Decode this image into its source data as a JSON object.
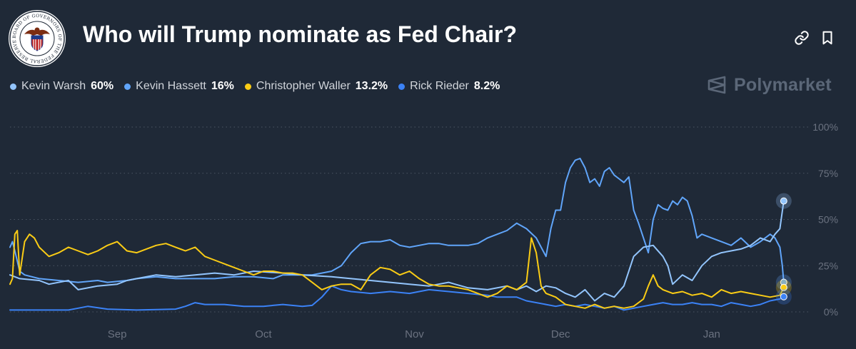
{
  "header": {
    "title": "Who will Trump nominate as Fed Chair?",
    "seal_text": "BOARD OF GOVERNORS OF THE FEDERAL RESERVE SYSTEM",
    "link_icon": "link-icon",
    "bookmark_icon": "bookmark-icon"
  },
  "brand": {
    "name": "Polymarket",
    "icon": "polymarket-logo-icon"
  },
  "colors": {
    "background": "#1f2937",
    "grid": "#4b5563",
    "axis_text": "#6b7280"
  },
  "chart_data": {
    "type": "line",
    "title": "Who will Trump nominate as Fed Chair?",
    "x_unit": "day index from Aug 10",
    "x_ticks": [
      {
        "label": "Sep",
        "x": 22
      },
      {
        "label": "Oct",
        "x": 52
      },
      {
        "label": "Nov",
        "x": 83
      },
      {
        "label": "Dec",
        "x": 113
      },
      {
        "label": "Jan",
        "x": 144
      }
    ],
    "y_ticks": [
      {
        "label": "100%",
        "value": 100
      },
      {
        "label": "75%",
        "value": 75
      },
      {
        "label": "50%",
        "value": 50
      },
      {
        "label": "25%",
        "value": 25
      },
      {
        "label": "0%",
        "value": 0
      }
    ],
    "xlim": [
      0,
      160
    ],
    "ylim": [
      0,
      100
    ],
    "grid": true,
    "series": [
      {
        "name": "Kevin Warsh",
        "current": "60%",
        "color": "#93c5fd",
        "points": [
          [
            0,
            20
          ],
          [
            2,
            18
          ],
          [
            6,
            17
          ],
          [
            8,
            15
          ],
          [
            12,
            17
          ],
          [
            14,
            12
          ],
          [
            18,
            14
          ],
          [
            22,
            15
          ],
          [
            24,
            17
          ],
          [
            26,
            18
          ],
          [
            30,
            20
          ],
          [
            34,
            19
          ],
          [
            38,
            20
          ],
          [
            42,
            21
          ],
          [
            46,
            20
          ],
          [
            50,
            22
          ],
          [
            56,
            21
          ],
          [
            60,
            20
          ],
          [
            66,
            19
          ],
          [
            70,
            18
          ],
          [
            74,
            17
          ],
          [
            78,
            16
          ],
          [
            82,
            15
          ],
          [
            86,
            14
          ],
          [
            90,
            16
          ],
          [
            94,
            13
          ],
          [
            98,
            12
          ],
          [
            102,
            14
          ],
          [
            104,
            12
          ],
          [
            106,
            14
          ],
          [
            108,
            11
          ],
          [
            110,
            14
          ],
          [
            112,
            13
          ],
          [
            114,
            10
          ],
          [
            116,
            8
          ],
          [
            118,
            12
          ],
          [
            120,
            6
          ],
          [
            122,
            10
          ],
          [
            124,
            8
          ],
          [
            126,
            14
          ],
          [
            128,
            30
          ],
          [
            130,
            35
          ],
          [
            132,
            36
          ],
          [
            134,
            30
          ],
          [
            135,
            25
          ],
          [
            136,
            15
          ],
          [
            138,
            20
          ],
          [
            140,
            17
          ],
          [
            142,
            25
          ],
          [
            144,
            30
          ],
          [
            146,
            32
          ],
          [
            148,
            33
          ],
          [
            150,
            34
          ],
          [
            152,
            36
          ],
          [
            154,
            40
          ],
          [
            156,
            38
          ],
          [
            157,
            42
          ],
          [
            158,
            45
          ],
          [
            158.8,
            60
          ]
        ]
      },
      {
        "name": "Kevin Hassett",
        "current": "16%",
        "color": "#60a5fa",
        "points": [
          [
            0,
            35
          ],
          [
            0.5,
            38
          ],
          [
            1,
            33
          ],
          [
            2,
            22
          ],
          [
            3,
            20
          ],
          [
            6,
            18
          ],
          [
            10,
            17
          ],
          [
            14,
            16
          ],
          [
            18,
            17
          ],
          [
            20,
            16
          ],
          [
            24,
            17
          ],
          [
            26,
            18
          ],
          [
            30,
            19
          ],
          [
            34,
            18
          ],
          [
            38,
            18
          ],
          [
            42,
            18
          ],
          [
            46,
            19
          ],
          [
            50,
            19
          ],
          [
            54,
            18
          ],
          [
            56,
            20
          ],
          [
            60,
            20
          ],
          [
            62,
            20
          ],
          [
            64,
            21
          ],
          [
            66,
            22
          ],
          [
            68,
            25
          ],
          [
            70,
            32
          ],
          [
            72,
            37
          ],
          [
            74,
            38
          ],
          [
            76,
            38
          ],
          [
            78,
            39
          ],
          [
            80,
            36
          ],
          [
            82,
            35
          ],
          [
            84,
            36
          ],
          [
            86,
            37
          ],
          [
            88,
            37
          ],
          [
            90,
            36
          ],
          [
            92,
            36
          ],
          [
            94,
            36
          ],
          [
            96,
            37
          ],
          [
            98,
            40
          ],
          [
            100,
            42
          ],
          [
            102,
            44
          ],
          [
            104,
            48
          ],
          [
            106,
            45
          ],
          [
            108,
            40
          ],
          [
            110,
            30
          ],
          [
            111,
            45
          ],
          [
            112,
            55
          ],
          [
            113,
            55
          ],
          [
            114,
            70
          ],
          [
            115,
            78
          ],
          [
            116,
            82
          ],
          [
            117,
            83
          ],
          [
            118,
            78
          ],
          [
            119,
            70
          ],
          [
            120,
            72
          ],
          [
            121,
            68
          ],
          [
            122,
            76
          ],
          [
            123,
            78
          ],
          [
            124,
            74
          ],
          [
            125,
            72
          ],
          [
            126,
            70
          ],
          [
            127,
            73
          ],
          [
            128,
            55
          ],
          [
            129,
            48
          ],
          [
            130,
            40
          ],
          [
            131,
            32
          ],
          [
            132,
            50
          ],
          [
            133,
            58
          ],
          [
            134,
            56
          ],
          [
            135,
            55
          ],
          [
            136,
            60
          ],
          [
            137,
            58
          ],
          [
            138,
            62
          ],
          [
            139,
            60
          ],
          [
            140,
            52
          ],
          [
            141,
            40
          ],
          [
            142,
            42
          ],
          [
            144,
            40
          ],
          [
            146,
            38
          ],
          [
            148,
            36
          ],
          [
            150,
            40
          ],
          [
            152,
            35
          ],
          [
            154,
            38
          ],
          [
            156,
            42
          ],
          [
            157,
            40
          ],
          [
            158,
            35
          ],
          [
            158.5,
            25
          ],
          [
            158.8,
            16
          ]
        ]
      },
      {
        "name": "Christopher Waller",
        "current": "13.2%",
        "color": "#facc15",
        "points": [
          [
            0,
            15
          ],
          [
            0.5,
            18
          ],
          [
            1,
            42
          ],
          [
            1.5,
            44
          ],
          [
            2,
            20
          ],
          [
            3,
            38
          ],
          [
            4,
            42
          ],
          [
            5,
            40
          ],
          [
            6,
            35
          ],
          [
            8,
            30
          ],
          [
            10,
            32
          ],
          [
            12,
            35
          ],
          [
            14,
            33
          ],
          [
            16,
            31
          ],
          [
            18,
            33
          ],
          [
            20,
            36
          ],
          [
            22,
            38
          ],
          [
            24,
            33
          ],
          [
            26,
            32
          ],
          [
            28,
            34
          ],
          [
            30,
            36
          ],
          [
            32,
            37
          ],
          [
            34,
            35
          ],
          [
            36,
            33
          ],
          [
            38,
            35
          ],
          [
            40,
            30
          ],
          [
            42,
            28
          ],
          [
            44,
            26
          ],
          [
            46,
            24
          ],
          [
            48,
            22
          ],
          [
            50,
            20
          ],
          [
            52,
            22
          ],
          [
            54,
            22
          ],
          [
            56,
            21
          ],
          [
            58,
            21
          ],
          [
            60,
            20
          ],
          [
            62,
            16
          ],
          [
            64,
            12
          ],
          [
            66,
            14
          ],
          [
            68,
            15
          ],
          [
            70,
            15
          ],
          [
            72,
            12
          ],
          [
            74,
            20
          ],
          [
            76,
            24
          ],
          [
            78,
            23
          ],
          [
            80,
            20
          ],
          [
            82,
            22
          ],
          [
            84,
            18
          ],
          [
            86,
            15
          ],
          [
            88,
            14
          ],
          [
            90,
            14
          ],
          [
            92,
            13
          ],
          [
            94,
            12
          ],
          [
            96,
            10
          ],
          [
            98,
            8
          ],
          [
            100,
            10
          ],
          [
            102,
            14
          ],
          [
            104,
            12
          ],
          [
            106,
            16
          ],
          [
            107,
            40
          ],
          [
            108,
            32
          ],
          [
            109,
            14
          ],
          [
            110,
            10
          ],
          [
            112,
            8
          ],
          [
            114,
            4
          ],
          [
            116,
            3
          ],
          [
            118,
            2
          ],
          [
            120,
            4
          ],
          [
            122,
            2
          ],
          [
            124,
            3
          ],
          [
            126,
            2
          ],
          [
            128,
            3
          ],
          [
            130,
            7
          ],
          [
            131,
            14
          ],
          [
            132,
            20
          ],
          [
            133,
            14
          ],
          [
            134,
            12
          ],
          [
            136,
            10
          ],
          [
            138,
            11
          ],
          [
            140,
            9
          ],
          [
            142,
            10
          ],
          [
            144,
            8
          ],
          [
            146,
            12
          ],
          [
            148,
            10
          ],
          [
            150,
            11
          ],
          [
            152,
            10
          ],
          [
            154,
            9
          ],
          [
            156,
            8
          ],
          [
            158,
            9
          ],
          [
            158.8,
            13.2
          ]
        ]
      },
      {
        "name": "Rick Rieder",
        "current": "8.2%",
        "color": "#3b82f6",
        "points": [
          [
            0,
            1
          ],
          [
            6,
            1
          ],
          [
            12,
            1
          ],
          [
            14,
            2
          ],
          [
            16,
            3
          ],
          [
            20,
            1.5
          ],
          [
            26,
            1
          ],
          [
            34,
            1.5
          ],
          [
            36,
            3
          ],
          [
            38,
            5
          ],
          [
            40,
            4
          ],
          [
            44,
            4
          ],
          [
            48,
            3
          ],
          [
            52,
            3
          ],
          [
            56,
            4
          ],
          [
            60,
            3
          ],
          [
            62,
            3.5
          ],
          [
            64,
            8
          ],
          [
            66,
            14
          ],
          [
            68,
            12
          ],
          [
            70,
            11
          ],
          [
            74,
            10
          ],
          [
            78,
            11
          ],
          [
            82,
            10
          ],
          [
            86,
            12
          ],
          [
            90,
            11
          ],
          [
            94,
            10
          ],
          [
            98,
            9
          ],
          [
            100,
            8
          ],
          [
            104,
            8
          ],
          [
            106,
            6
          ],
          [
            110,
            4
          ],
          [
            112,
            3
          ],
          [
            114,
            4
          ],
          [
            116,
            3
          ],
          [
            118,
            4
          ],
          [
            120,
            3
          ],
          [
            122,
            2
          ],
          [
            124,
            3
          ],
          [
            126,
            1
          ],
          [
            128,
            2
          ],
          [
            130,
            3
          ],
          [
            132,
            4
          ],
          [
            134,
            5
          ],
          [
            136,
            4
          ],
          [
            138,
            4
          ],
          [
            140,
            5
          ],
          [
            142,
            4
          ],
          [
            144,
            4
          ],
          [
            146,
            3
          ],
          [
            148,
            5
          ],
          [
            150,
            4
          ],
          [
            152,
            3
          ],
          [
            154,
            4
          ],
          [
            156,
            6
          ],
          [
            158,
            7
          ],
          [
            158.8,
            8.2
          ]
        ]
      }
    ]
  }
}
